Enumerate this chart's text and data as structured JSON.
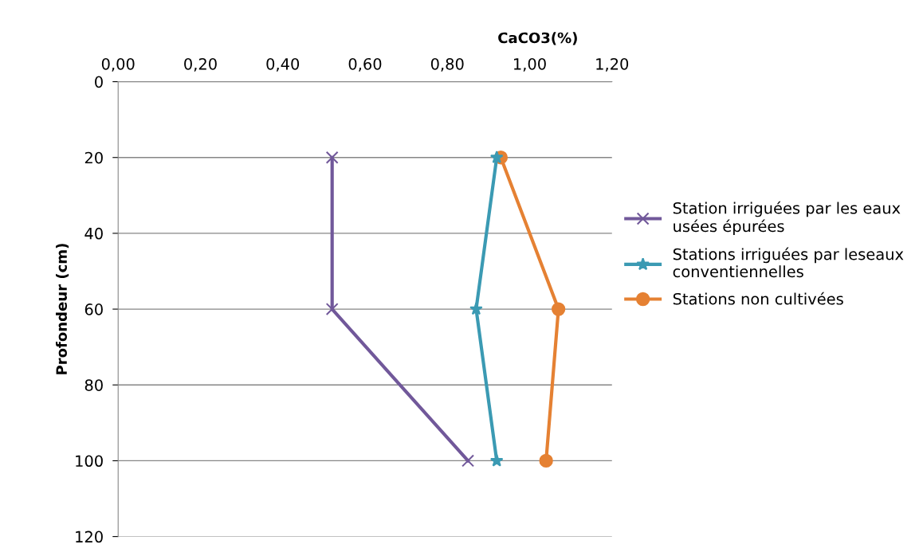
{
  "chart_data": {
    "type": "line",
    "xlabel": "CaCO3(%)",
    "ylabel": "Profondeur (cm)",
    "xlim": [
      0,
      1.2
    ],
    "xticks": [
      {
        "value": 0,
        "label": "0,00"
      },
      {
        "value": 0.2,
        "label": "0,20"
      },
      {
        "value": 0.4,
        "label": "0,40"
      },
      {
        "value": 0.6,
        "label": "0,60"
      },
      {
        "value": 0.8,
        "label": "0,80"
      },
      {
        "value": 1.0,
        "label": "1,00"
      },
      {
        "value": 1.2,
        "label": "1,20"
      }
    ],
    "ylim": [
      120,
      0
    ],
    "yticks": [
      0,
      20,
      40,
      60,
      80,
      100,
      120
    ],
    "grid": "y",
    "legend": "right",
    "series": [
      {
        "name": "Station irriguées par les eaux usées épurées",
        "color": "#71589a",
        "marker": "cross",
        "x": [
          0.52,
          0.52,
          0.85
        ],
        "values": [
          20,
          60,
          100
        ]
      },
      {
        "name": "Stations irriguées par leseaux conventiennelles",
        "color": "#3b9ab3",
        "marker": "star",
        "x": [
          0.92,
          0.87,
          0.92
        ],
        "values": [
          20,
          60,
          100
        ]
      },
      {
        "name": "Stations non cultivées",
        "color": "#e58133",
        "marker": "circle",
        "x": [
          0.93,
          1.07,
          1.04
        ],
        "values": [
          20,
          60,
          100
        ]
      }
    ]
  }
}
